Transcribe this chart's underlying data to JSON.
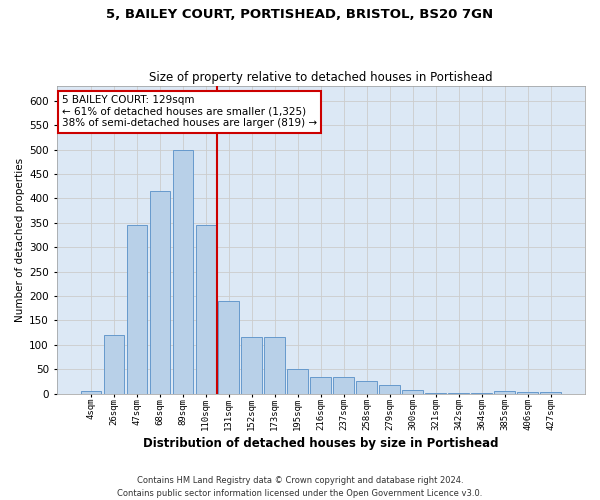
{
  "title1": "5, BAILEY COURT, PORTISHEAD, BRISTOL, BS20 7GN",
  "title2": "Size of property relative to detached houses in Portishead",
  "xlabel": "Distribution of detached houses by size in Portishead",
  "ylabel": "Number of detached properties",
  "categories": [
    "4sqm",
    "26sqm",
    "47sqm",
    "68sqm",
    "89sqm",
    "110sqm",
    "131sqm",
    "152sqm",
    "173sqm",
    "195sqm",
    "216sqm",
    "237sqm",
    "258sqm",
    "279sqm",
    "300sqm",
    "321sqm",
    "342sqm",
    "364sqm",
    "385sqm",
    "406sqm",
    "427sqm"
  ],
  "values": [
    5,
    120,
    345,
    415,
    500,
    345,
    190,
    115,
    115,
    50,
    35,
    35,
    25,
    18,
    8,
    2,
    2,
    2,
    5,
    4,
    4
  ],
  "bar_color": "#b8d0e8",
  "bar_edge_color": "#6699cc",
  "highlight_color": "#cc0000",
  "annotation_text": "5 BAILEY COURT: 129sqm\n← 61% of detached houses are smaller (1,325)\n38% of semi-detached houses are larger (819) →",
  "annotation_box_color": "white",
  "annotation_box_edge_color": "#cc0000",
  "vline_x": 6.0,
  "ylim": [
    0,
    630
  ],
  "yticks": [
    0,
    50,
    100,
    150,
    200,
    250,
    300,
    350,
    400,
    450,
    500,
    550,
    600
  ],
  "grid_color": "#cccccc",
  "background_color": "#dce8f5",
  "footer1": "Contains HM Land Registry data © Crown copyright and database right 2024.",
  "footer2": "Contains public sector information licensed under the Open Government Licence v3.0."
}
